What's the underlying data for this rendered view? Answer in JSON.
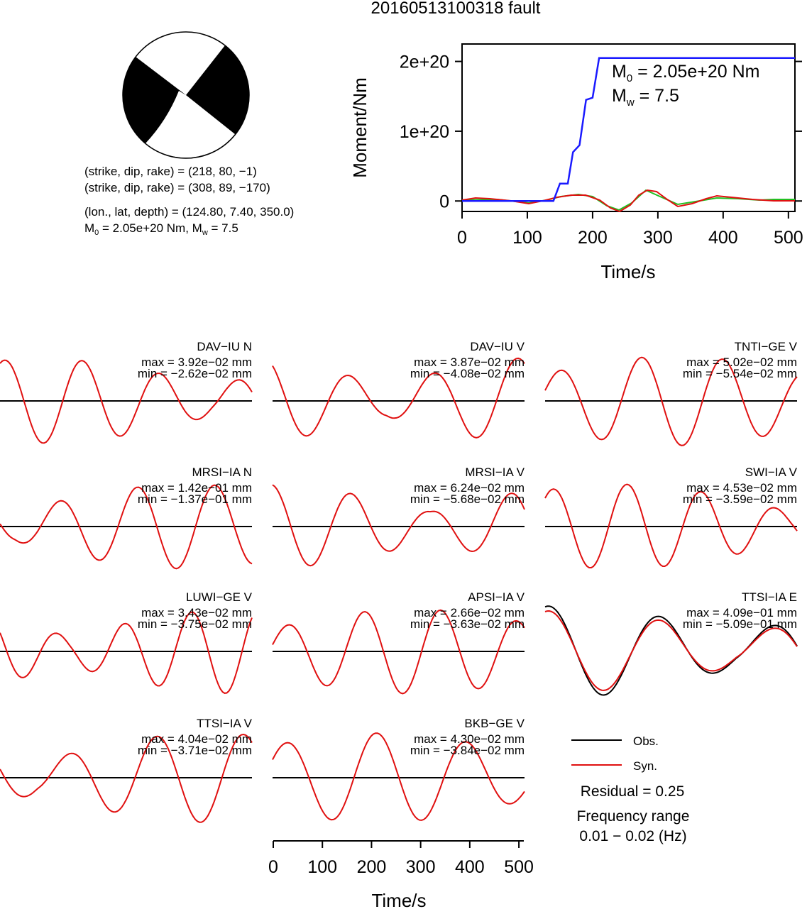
{
  "title": "20160513100318 fault",
  "mechanism": {
    "plane1": "(strike, dip, rake) = (218, 80, −1)",
    "plane2": "(strike, dip, rake) = (308, 89, −170)",
    "location": "(lon., lat, depth) = (124.80, 7.40, 350.0)",
    "moment_prefix": "M",
    "moment_sub": "0",
    "moment_rest": " = 2.05e+20 Nm, M",
    "mw_sub": "w",
    "mw_rest": " = 7.5"
  },
  "legend": {
    "obs": "Obs.",
    "syn": "Syn.",
    "residual": "Residual = 0.25",
    "freq_title": "Frequency range",
    "freq_value": "0.01 − 0.02 (Hz)"
  },
  "colors": {
    "moment": "#1a1aff",
    "observed": "#000000",
    "synthetic": "#e01010",
    "green": "#22c022"
  },
  "chart_data": [
    {
      "type": "line",
      "panel": "moment-function",
      "xlabel": "Time/s",
      "ylabel": "Moment/Nm",
      "xlim": [
        0,
        510
      ],
      "ylim": [
        -15000000000000000000,
        225000000000000000000
      ],
      "xticks": [
        0,
        100,
        200,
        300,
        400,
        500
      ],
      "yticks": [
        0,
        100000000000000000000,
        200000000000000000000
      ],
      "ytick_labels": [
        "0",
        "1e+20",
        "2e+20"
      ],
      "annotation_m0_base": "M",
      "annotation_m0_sub": "0",
      "annotation_m0_rest": " = 2.05e+20 Nm",
      "annotation_mw_base": "M",
      "annotation_mw_sub": "w",
      "annotation_mw_rest": " = 7.5",
      "series": [
        {
          "color": "#1a1aff",
          "x": [
            0,
            140,
            150,
            162,
            170,
            180,
            190,
            200,
            210,
            510
          ],
          "y": [
            0,
            0,
            25000000000000000000,
            25000000000000000000,
            70000000000000000000,
            80000000000000000000,
            145000000000000000000,
            148000000000000000000,
            205000000000000000000,
            205000000000000000000
          ]
        }
      ]
    },
    {
      "type": "line",
      "panel": "waveforms",
      "xlabel": "Time/s",
      "xlim": [
        0,
        510
      ],
      "xticks": [
        0,
        100,
        200,
        300,
        400,
        500
      ],
      "stations": [
        {
          "name": "DAV−IU N",
          "max": "max = 3.92e−02 mm",
          "min": "min = −2.62e−02 mm"
        },
        {
          "name": "DAV−IU V",
          "max": "max = 3.87e−02 mm",
          "min": "min = −4.08e−02 mm"
        },
        {
          "name": "TNTI−GE V",
          "max": "max = 5.02e−02 mm",
          "min": "min = −5.54e−02 mm"
        },
        {
          "name": "MRSI−IA N",
          "max": "max = 1.42e−01 mm",
          "min": "min = −1.37e−01 mm"
        },
        {
          "name": "MRSI−IA V",
          "max": "max = 6.24e−02 mm",
          "min": "min = −5.68e−02 mm"
        },
        {
          "name": "SWI−IA V",
          "max": "max = 4.53e−02 mm",
          "min": "min = −3.59e−02 mm"
        },
        {
          "name": "LUWI−GE V",
          "max": "max = 3.43e−02 mm",
          "min": "min = −3.75e−02 mm"
        },
        {
          "name": "APSI−IA V",
          "max": "max = 2.66e−02 mm",
          "min": "min = −3.63e−02 mm"
        },
        {
          "name": "TTSI−IA E",
          "max": "max = 4.09e−01 mm",
          "min": "min = −5.09e−01 mm"
        },
        {
          "name": "TTSI−IA V",
          "max": "max = 4.04e−02 mm",
          "min": "min = −3.71e−02 mm"
        },
        {
          "name": "BKB−GE V",
          "max": "max = 4.30e−02 mm",
          "min": "min = −3.84e−02 mm"
        }
      ]
    }
  ]
}
